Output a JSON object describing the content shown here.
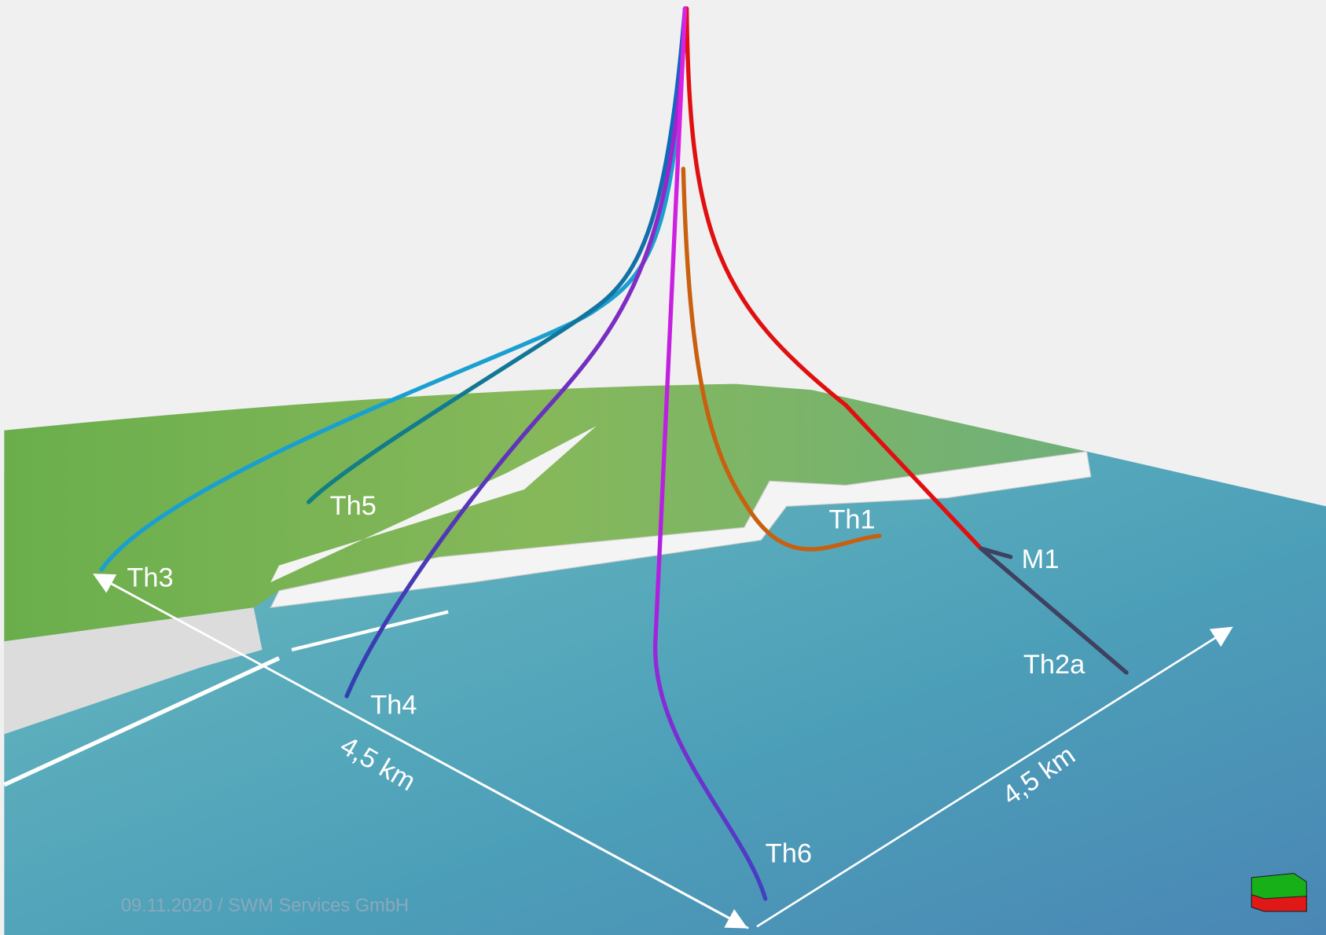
{
  "wells": [
    {
      "label": "Th3"
    },
    {
      "label": "Th5"
    },
    {
      "label": "Th4"
    },
    {
      "label": "Th1"
    },
    {
      "label": "M1"
    },
    {
      "label": "Th2a"
    },
    {
      "label": "Th6"
    }
  ],
  "dimensions": [
    {
      "label": "4,5 km"
    },
    {
      "label": "4,5 km"
    }
  ],
  "footer": "09.11.2020 / SWM Services GmbH"
}
